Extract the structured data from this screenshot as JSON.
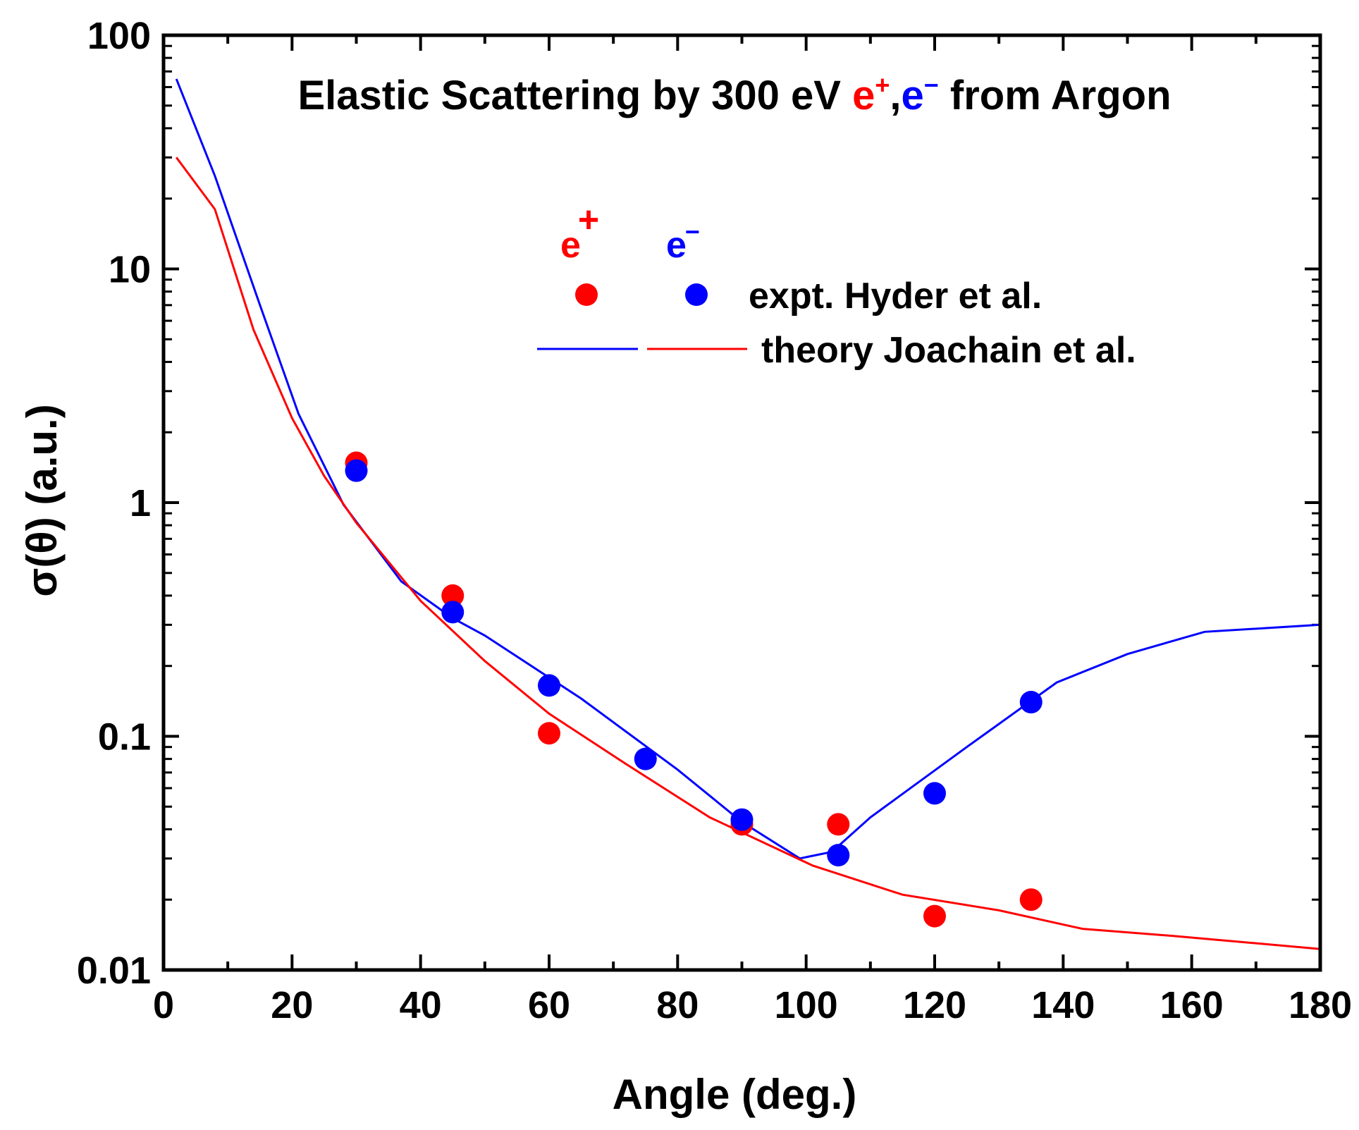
{
  "chart_data": {
    "type": "scatter",
    "title": {
      "prefix": "Elastic Scattering by 300 eV ",
      "positron": "e",
      "positron_sup": "+",
      "comma": ",",
      "electron": "e",
      "electron_sup": "−",
      "suffix": " from Argon"
    },
    "xlabel": "Angle (deg.)",
    "ylabel": "σ(θ) (a.u.)",
    "xlim": [
      0,
      180
    ],
    "ylim": [
      0.01,
      100
    ],
    "yscale": "log",
    "x_ticks": [
      0,
      20,
      40,
      60,
      80,
      100,
      120,
      140,
      160,
      180
    ],
    "x_tick_labels": [
      "0",
      "20",
      "40",
      "60",
      "80",
      "100",
      "120",
      "140",
      "160",
      "180"
    ],
    "y_ticks": [
      0.01,
      0.1,
      1,
      10,
      100
    ],
    "y_tick_labels": [
      "0.01",
      "0.1",
      "1",
      "10",
      "100"
    ],
    "legend": {
      "position": "top-right",
      "positron_header": "e",
      "positron_header_sup": "+",
      "electron_header": "e",
      "electron_header_sup": "−",
      "expt_label": "expt. Hyder et al.",
      "theory_label": "theory  Joachain et al."
    },
    "colors": {
      "positron": "#ff0000",
      "electron": "#0000ff",
      "axis": "#000000"
    },
    "series": [
      {
        "name": "e+ expt. Hyder et al.",
        "kind": "points",
        "color": "#ff0000",
        "x": [
          30,
          45,
          60,
          90,
          105,
          120,
          135
        ],
        "y": [
          1.48,
          0.4,
          0.103,
          0.042,
          0.042,
          0.017,
          0.02
        ]
      },
      {
        "name": "e- expt. Hyder et al.",
        "kind": "points",
        "color": "#0000ff",
        "x": [
          30,
          45,
          60,
          75,
          90,
          105,
          120,
          135
        ],
        "y": [
          1.37,
          0.34,
          0.165,
          0.08,
          0.044,
          0.031,
          0.057,
          0.14
        ]
      },
      {
        "name": "e- theory Joachain et al.",
        "kind": "line",
        "color": "#0000ff",
        "x": [
          2,
          8,
          15,
          21,
          28,
          37,
          45,
          50,
          65,
          80,
          90,
          99,
          104,
          110,
          125,
          139,
          150,
          162,
          180
        ],
        "y": [
          65,
          25,
          7,
          2.4,
          0.98,
          0.46,
          0.32,
          0.27,
          0.145,
          0.072,
          0.043,
          0.03,
          0.032,
          0.045,
          0.09,
          0.17,
          0.225,
          0.28,
          0.3
        ]
      },
      {
        "name": "e+ theory Joachain et al.",
        "kind": "line",
        "color": "#ff0000",
        "x": [
          2,
          8,
          14,
          20,
          25,
          30,
          40,
          50,
          60,
          72,
          85,
          101,
          115,
          130,
          143,
          157,
          180
        ],
        "y": [
          30,
          18,
          5.5,
          2.3,
          1.3,
          0.82,
          0.38,
          0.21,
          0.125,
          0.076,
          0.045,
          0.028,
          0.021,
          0.018,
          0.015,
          0.014,
          0.0123
        ]
      }
    ]
  }
}
